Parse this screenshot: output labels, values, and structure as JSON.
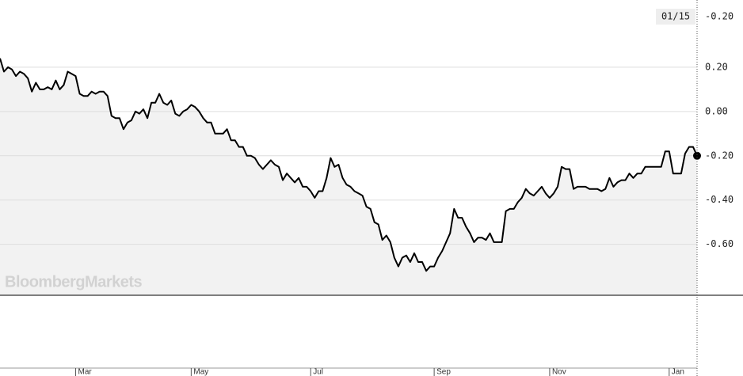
{
  "chart_data": {
    "type": "line",
    "watermark": "BloombergMarkets",
    "header": {
      "date": "01/15",
      "value_label": "-0.20"
    },
    "categories": [
      null,
      null,
      null,
      null,
      null,
      null,
      null,
      null,
      null,
      null,
      null,
      null,
      null,
      null,
      null,
      null,
      null,
      null,
      null,
      "Mar",
      null,
      null,
      null,
      null,
      null,
      null,
      null,
      null,
      null,
      null,
      null,
      null,
      null,
      null,
      null,
      null,
      null,
      null,
      null,
      null,
      null,
      null,
      null,
      null,
      null,
      null,
      null,
      null,
      "May",
      null,
      null,
      null,
      null,
      null,
      null,
      null,
      null,
      null,
      null,
      null,
      null,
      null,
      null,
      null,
      null,
      null,
      null,
      null,
      null,
      null,
      null,
      null,
      null,
      null,
      null,
      null,
      null,
      null,
      "Jul",
      null,
      null,
      null,
      null,
      null,
      null,
      null,
      null,
      null,
      null,
      null,
      null,
      null,
      null,
      null,
      null,
      null,
      null,
      null,
      null,
      null,
      null,
      null,
      null,
      null,
      null,
      null,
      null,
      null,
      null,
      "Sep",
      null,
      null,
      null,
      null,
      null,
      null,
      null,
      null,
      null,
      null,
      null,
      null,
      null,
      null,
      null,
      null,
      null,
      null,
      null,
      null,
      null,
      null,
      null,
      null,
      null,
      null,
      null,
      null,
      "Nov",
      null,
      null,
      null,
      null,
      null,
      null,
      null,
      null,
      null,
      null,
      null,
      null,
      null,
      null,
      null,
      null,
      null,
      null,
      null,
      null,
      null,
      null,
      null,
      null,
      null,
      null,
      null,
      null,
      null,
      "Jan",
      null,
      null,
      null,
      null,
      null,
      null,
      null
    ],
    "series": [
      {
        "color": "#000000",
        "values": [
          0.24,
          0.18,
          0.2,
          0.19,
          0.16,
          0.18,
          0.17,
          0.15,
          0.09,
          0.13,
          0.1,
          0.1,
          0.11,
          0.1,
          0.14,
          0.1,
          0.12,
          0.18,
          0.17,
          0.16,
          0.08,
          0.07,
          0.07,
          0.09,
          0.08,
          0.09,
          0.09,
          0.07,
          -0.02,
          -0.03,
          -0.03,
          -0.08,
          -0.05,
          -0.04,
          0.0,
          -0.01,
          0.01,
          -0.03,
          0.04,
          0.04,
          0.08,
          0.04,
          0.03,
          0.05,
          -0.01,
          -0.02,
          0.0,
          0.01,
          0.03,
          0.02,
          0.0,
          -0.03,
          -0.05,
          -0.05,
          -0.1,
          -0.1,
          -0.1,
          -0.08,
          -0.13,
          -0.13,
          -0.16,
          -0.16,
          -0.2,
          -0.2,
          -0.21,
          -0.24,
          -0.26,
          -0.24,
          -0.22,
          -0.24,
          -0.25,
          -0.31,
          -0.28,
          -0.3,
          -0.32,
          -0.3,
          -0.34,
          -0.34,
          -0.36,
          -0.39,
          -0.36,
          -0.36,
          -0.3,
          -0.21,
          -0.25,
          -0.24,
          -0.3,
          -0.33,
          -0.34,
          -0.36,
          -0.37,
          -0.38,
          -0.43,
          -0.44,
          -0.5,
          -0.51,
          -0.58,
          -0.56,
          -0.59,
          -0.66,
          -0.7,
          -0.66,
          -0.65,
          -0.68,
          -0.64,
          -0.68,
          -0.68,
          -0.72,
          -0.7,
          -0.7,
          -0.66,
          -0.63,
          -0.59,
          -0.55,
          -0.44,
          -0.48,
          -0.48,
          -0.52,
          -0.55,
          -0.59,
          -0.57,
          -0.57,
          -0.58,
          -0.55,
          -0.59,
          -0.59,
          -0.59,
          -0.45,
          -0.44,
          -0.44,
          -0.41,
          -0.39,
          -0.35,
          -0.37,
          -0.38,
          -0.36,
          -0.34,
          -0.37,
          -0.39,
          -0.37,
          -0.34,
          -0.25,
          -0.26,
          -0.26,
          -0.35,
          -0.34,
          -0.34,
          -0.34,
          -0.35,
          -0.35,
          -0.35,
          -0.36,
          -0.35,
          -0.3,
          -0.34,
          -0.32,
          -0.31,
          -0.31,
          -0.28,
          -0.3,
          -0.28,
          -0.28,
          -0.25,
          -0.25,
          -0.25,
          -0.25,
          -0.25,
          -0.18,
          -0.18,
          -0.28,
          -0.28,
          -0.28,
          -0.19,
          -0.16,
          -0.16,
          -0.2
        ]
      }
    ],
    "ylim": [
      -0.83,
      0.5
    ],
    "yticks": [
      {
        "value": 0.2,
        "label": "0.20"
      },
      {
        "value": 0,
        "label": "0.00"
      },
      {
        "value": -0.2,
        "label": "-0.20"
      },
      {
        "value": -0.4,
        "label": "-0.40"
      },
      {
        "value": -0.6,
        "label": "-0.60"
      }
    ],
    "grid": true
  }
}
